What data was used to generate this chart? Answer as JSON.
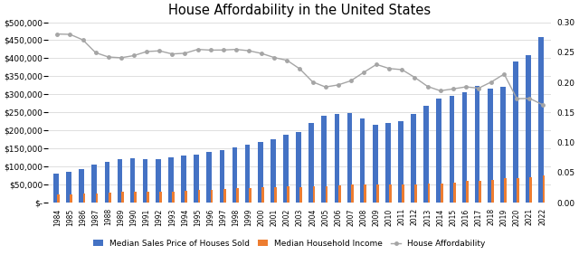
{
  "title": "House Affordability in the United States",
  "years": [
    1984,
    1985,
    1986,
    1987,
    1988,
    1989,
    1990,
    1991,
    1992,
    1993,
    1994,
    1995,
    1996,
    1997,
    1998,
    1999,
    2000,
    2001,
    2002,
    2003,
    2004,
    2005,
    2006,
    2007,
    2008,
    2009,
    2010,
    2011,
    2012,
    2013,
    2014,
    2015,
    2016,
    2017,
    2018,
    2019,
    2020,
    2021,
    2022
  ],
  "median_sales_price": [
    79900,
    84300,
    92000,
    104500,
    112500,
    120000,
    122900,
    120000,
    121500,
    126500,
    130000,
    133900,
    140000,
    146000,
    152500,
    161000,
    169000,
    175200,
    187600,
    195000,
    221000,
    240900,
    246500,
    247900,
    232100,
    216700,
    221800,
    226700,
    245200,
    268900,
    288900,
    295200,
    306700,
    323100,
    315000,
    321500,
    391000,
    408800,
    457800
  ],
  "median_household_income": [
    22415,
    23618,
    24897,
    26061,
    27225,
    28906,
    29943,
    30126,
    30636,
    31241,
    32264,
    34076,
    35492,
    37005,
    38885,
    40696,
    41990,
    42228,
    44389,
    43318,
    44389,
    46326,
    48201,
    50233,
    50303,
    49777,
    49445,
    50054,
    51017,
    51939,
    53657,
    55775,
    59039,
    61372,
    63179,
    68703,
    67521,
    70784,
    74580
  ],
  "house_affordability": [
    0.2803,
    0.2797,
    0.2706,
    0.2493,
    0.2421,
    0.2408,
    0.2444,
    0.2511,
    0.2523,
    0.2471,
    0.2483,
    0.2547,
    0.2535,
    0.2537,
    0.2547,
    0.2525,
    0.248,
    0.2411,
    0.2365,
    0.2222,
    0.2007,
    0.1922,
    0.1956,
    0.2026,
    0.2165,
    0.2297,
    0.2229,
    0.221,
    0.2081,
    0.1932,
    0.1859,
    0.189,
    0.1924,
    0.1902,
    0.2006,
    0.2137,
    0.1727,
    0.1732,
    0.1629
  ],
  "bar_color_blue": "#4472C4",
  "bar_color_orange": "#ED7D31",
  "line_color": "#A5A5A5",
  "background_color": "#FFFFFF",
  "ylim_left": [
    0,
    500000
  ],
  "ylim_right": [
    0.0,
    0.3
  ],
  "yticks_left": [
    0,
    50000,
    100000,
    150000,
    200000,
    250000,
    300000,
    350000,
    400000,
    450000,
    500000
  ],
  "ytick_labels_left": [
    "$-",
    "$50,000",
    "$100,000",
    "$150,000",
    "$200,000",
    "$250,000",
    "$300,000",
    "$350,000",
    "$400,000",
    "$450,000",
    "$500,000"
  ],
  "yticks_right": [
    0.0,
    0.05,
    0.1,
    0.15,
    0.2,
    0.25,
    0.3
  ],
  "legend_labels": [
    "Median Sales Price of Houses Sold",
    "Median Household Income",
    "House Affordability"
  ],
  "title_fontsize": 10.5
}
